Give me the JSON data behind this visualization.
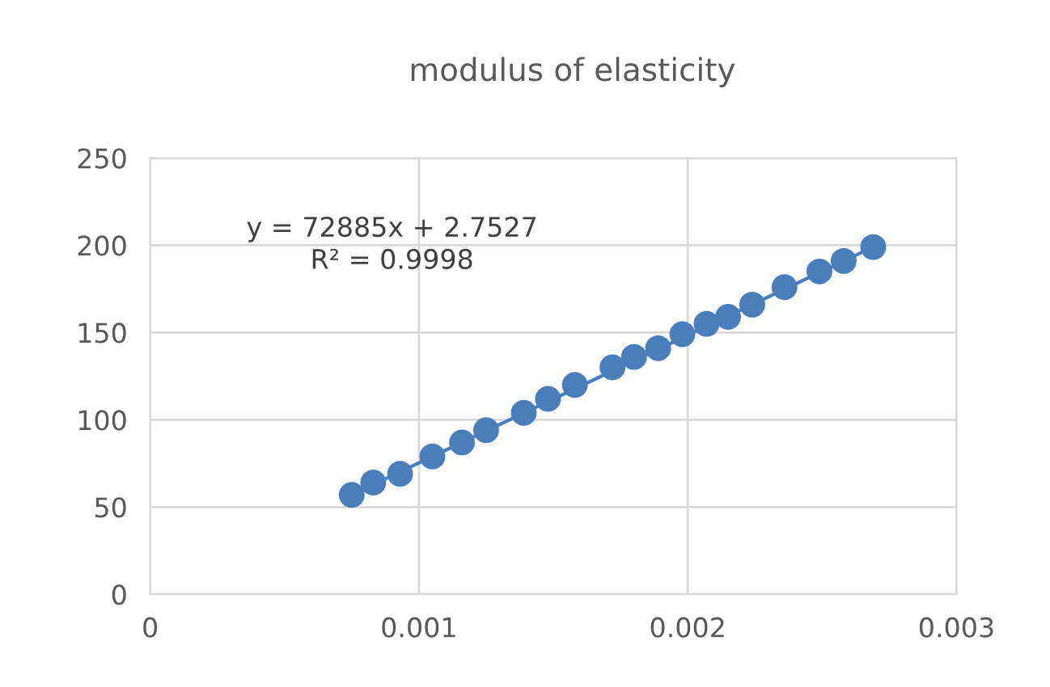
{
  "chart_data": {
    "type": "scatter",
    "title": "modulus of elasticity",
    "series": [
      {
        "color": "#4a7ebb",
        "marker": "circle",
        "x": [
          0.00075,
          0.00083,
          0.00093,
          0.00105,
          0.00116,
          0.00125,
          0.00139,
          0.00148,
          0.00158,
          0.00172,
          0.0018,
          0.00189,
          0.00198,
          0.00207,
          0.00215,
          0.00224,
          0.00236,
          0.00249,
          0.00258,
          0.00269
        ],
        "values": [
          57,
          64,
          69,
          79,
          87,
          94,
          104,
          112,
          120,
          130,
          136,
          141,
          149,
          155,
          159,
          166,
          176,
          185,
          191,
          199
        ]
      },
      {
        "type": "line",
        "color": "#4a7ebb",
        "line_style": "solid",
        "x": [
          0.00075,
          0.00269
        ],
        "values": [
          57,
          199
        ]
      }
    ],
    "xlim": [
      0,
      0.003
    ],
    "xticks": [
      0,
      0.001,
      0.002,
      0.003
    ],
    "ylim": [
      0,
      250
    ],
    "yticks": [
      0,
      50,
      100,
      150,
      200,
      250
    ],
    "grid": true,
    "annotations": [
      "y = 72885x + 2.7527\nR² = 0.9998"
    ]
  }
}
